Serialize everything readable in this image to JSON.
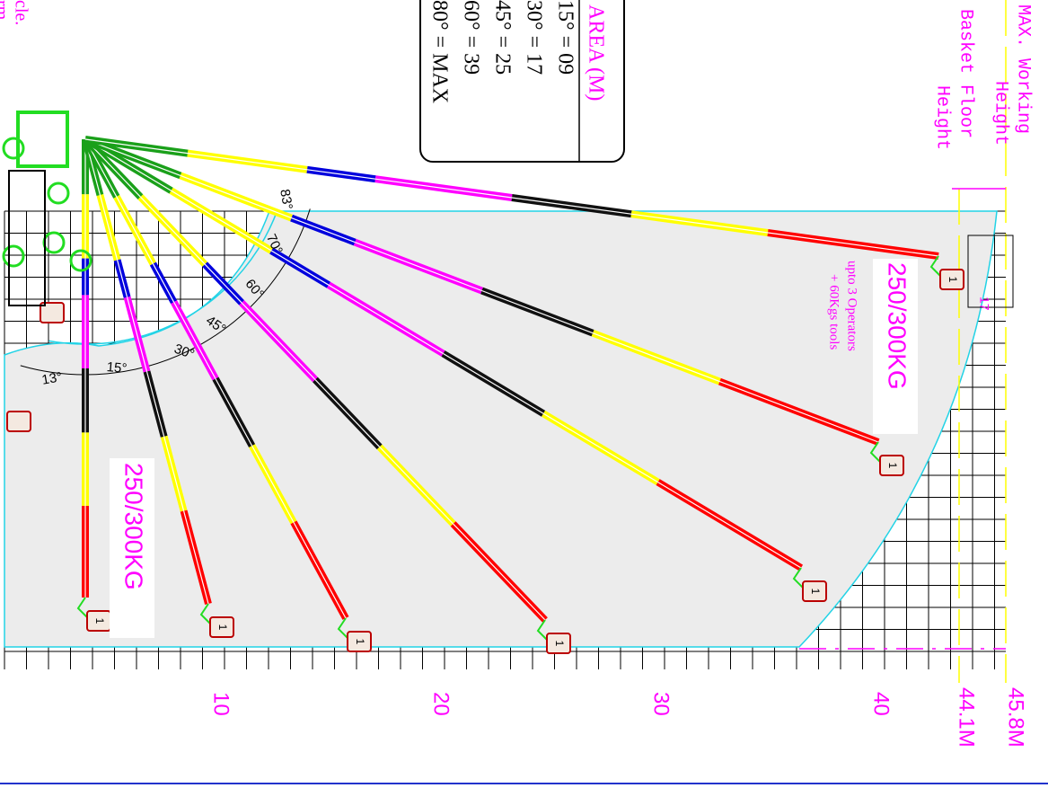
{
  "max_working_height": [
    "MAX. Working",
    "Height"
  ],
  "max_working_value": "45.8M",
  "basket_floor_height": [
    "Basket Floor",
    "Height"
  ],
  "basket_floor_value": "44.1M",
  "axis_labels": [
    "10",
    "20",
    "30",
    "40"
  ],
  "area_table": {
    "title": "AREA (M)",
    "rows": [
      "15° = 09",
      "30° = 17",
      "45° = 25",
      "60° = 39",
      "80° = MAX"
    ]
  },
  "capacity_labels": [
    "250/300KG",
    "250/300KG"
  ],
  "operators_note": [
    "upto 3 Operators",
    "+ 60Kgs tools"
  ],
  "angle_labels": [
    "83°",
    "70°",
    "60°",
    "45°",
    "30°",
    "15°",
    "13°"
  ],
  "basket_marker": "17",
  "basket_label": "1",
  "cut_text": [
    "cle.",
    "rm."
  ]
}
